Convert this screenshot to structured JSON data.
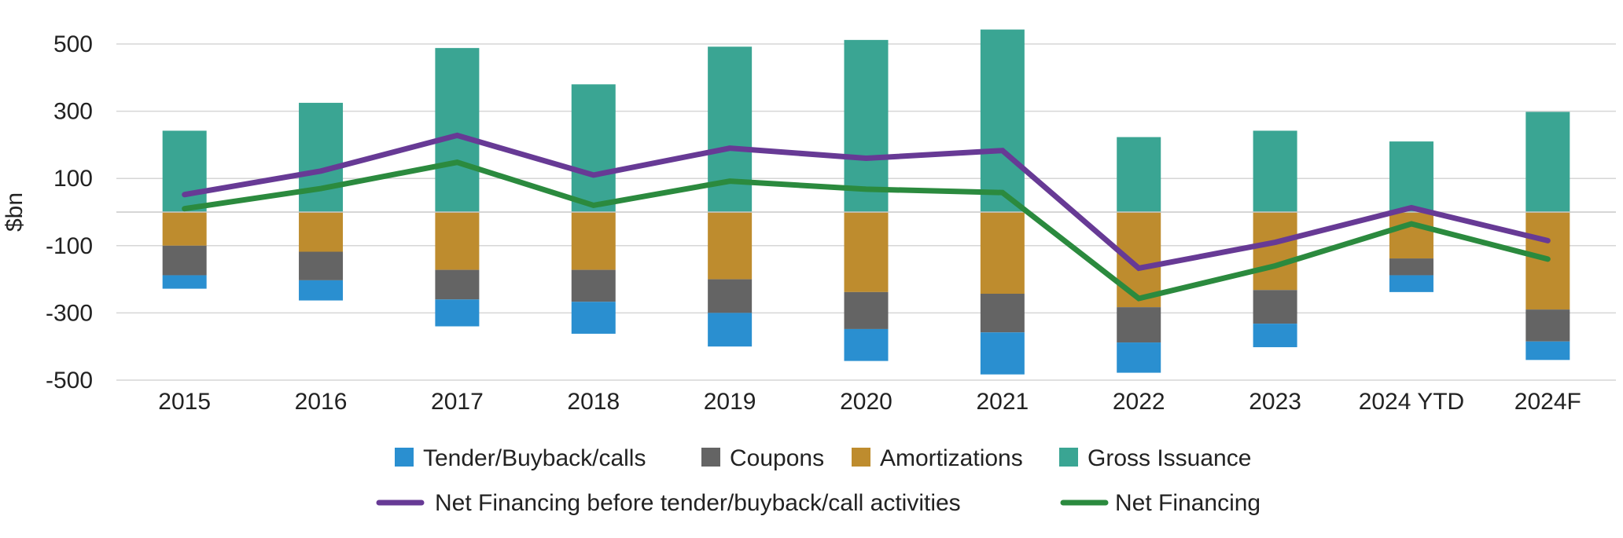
{
  "chart_data": {
    "type": "bar",
    "ylabel": "$bn",
    "ylim": [
      -500,
      500
    ],
    "yticks": [
      500,
      300,
      100,
      -100,
      -300,
      -500
    ],
    "categories": [
      "2015",
      "2016",
      "2017",
      "2018",
      "2019",
      "2020",
      "2021",
      "2022",
      "2023",
      "2024 YTD",
      "2024F"
    ],
    "bar_series": [
      {
        "name": "Tender/Buyback/calls",
        "color": "#2a8fd0",
        "values": [
          -40,
          -60,
          -80,
          -95,
          -100,
          -95,
          -125,
          -90,
          -70,
          -50,
          -55
        ]
      },
      {
        "name": "Coupons",
        "color": "#646464",
        "values": [
          -88,
          -85,
          -88,
          -95,
          -100,
          -110,
          -115,
          -105,
          -100,
          -50,
          -95
        ]
      },
      {
        "name": "Amortizations",
        "color": "#be8c2e",
        "values": [
          -100,
          -118,
          -172,
          -172,
          -200,
          -238,
          -243,
          -283,
          -232,
          -138,
          -290
        ]
      },
      {
        "name": "Gross Issuance",
        "color": "#3aa593",
        "values": [
          242,
          325,
          488,
          380,
          492,
          512,
          543,
          223,
          242,
          210,
          298
        ]
      }
    ],
    "line_series": [
      {
        "name": "Net Financing before tender/buyback/call activities",
        "color": "#673a95",
        "values": [
          52,
          122,
          228,
          110,
          190,
          160,
          183,
          -167,
          -90,
          13,
          -85
        ]
      },
      {
        "name": "Net Financing",
        "color": "#2b8a3e",
        "values": [
          10,
          70,
          148,
          20,
          92,
          68,
          58,
          -257,
          -160,
          -35,
          -140
        ]
      }
    ]
  }
}
